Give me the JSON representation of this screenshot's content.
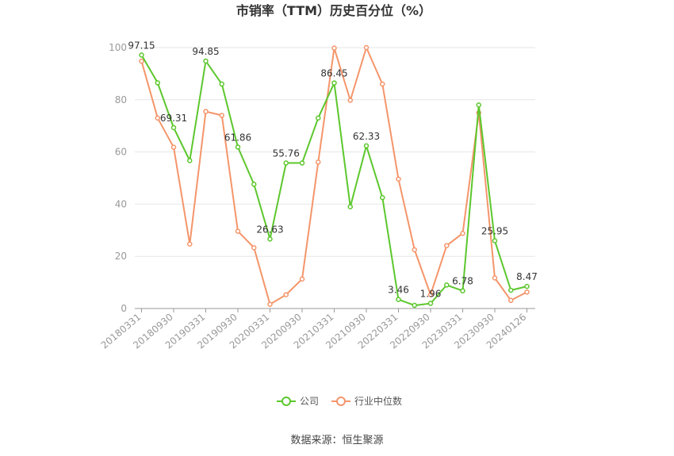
{
  "chart_data": {
    "type": "line",
    "title": "市销率（TTM）历史百分位（%）",
    "xlabel": "",
    "ylabel": "",
    "ylim": [
      0,
      100
    ],
    "yticks": [
      "0",
      "20",
      "40",
      "60",
      "80",
      "100"
    ],
    "x_tick_labels": [
      "20180331",
      "20180930",
      "20190331",
      "20190930",
      "20200331",
      "20200930",
      "20210331",
      "20210930",
      "20220331",
      "20220930",
      "20230331",
      "20230930",
      "20240126"
    ],
    "series": [
      {
        "name": "公司",
        "color": "#5cc72d",
        "values": [
          97.15,
          86.5,
          69.31,
          56.7,
          94.85,
          86.0,
          61.86,
          47.6,
          26.63,
          55.76,
          55.76,
          73.0,
          86.45,
          39.0,
          62.33,
          42.5,
          3.46,
          1.2,
          1.96,
          9.0,
          6.78,
          78.0,
          25.95,
          7.0,
          8.47
        ],
        "labels": [
          "97.15",
          "",
          "69.31",
          "",
          "94.85",
          "",
          "61.86",
          "",
          "26.63",
          "55.76",
          "",
          "",
          "86.45",
          "",
          "62.33",
          "",
          "3.46",
          "",
          "1.96",
          "",
          "6.78",
          "",
          "25.95",
          "",
          "8.47"
        ]
      },
      {
        "name": "行业中位数",
        "color": "#f4956a",
        "values": [
          94.8,
          73.0,
          61.8,
          24.7,
          75.5,
          74.0,
          29.6,
          23.3,
          1.6,
          5.3,
          11.3,
          56.1,
          99.8,
          79.8,
          100.0,
          86.0,
          49.6,
          22.5,
          5.3,
          24.1,
          28.8,
          75.0,
          11.7,
          3.1,
          6.3
        ]
      }
    ],
    "legend_position": "bottom",
    "grid": true
  },
  "source_text": "数据来源：恒生聚源"
}
